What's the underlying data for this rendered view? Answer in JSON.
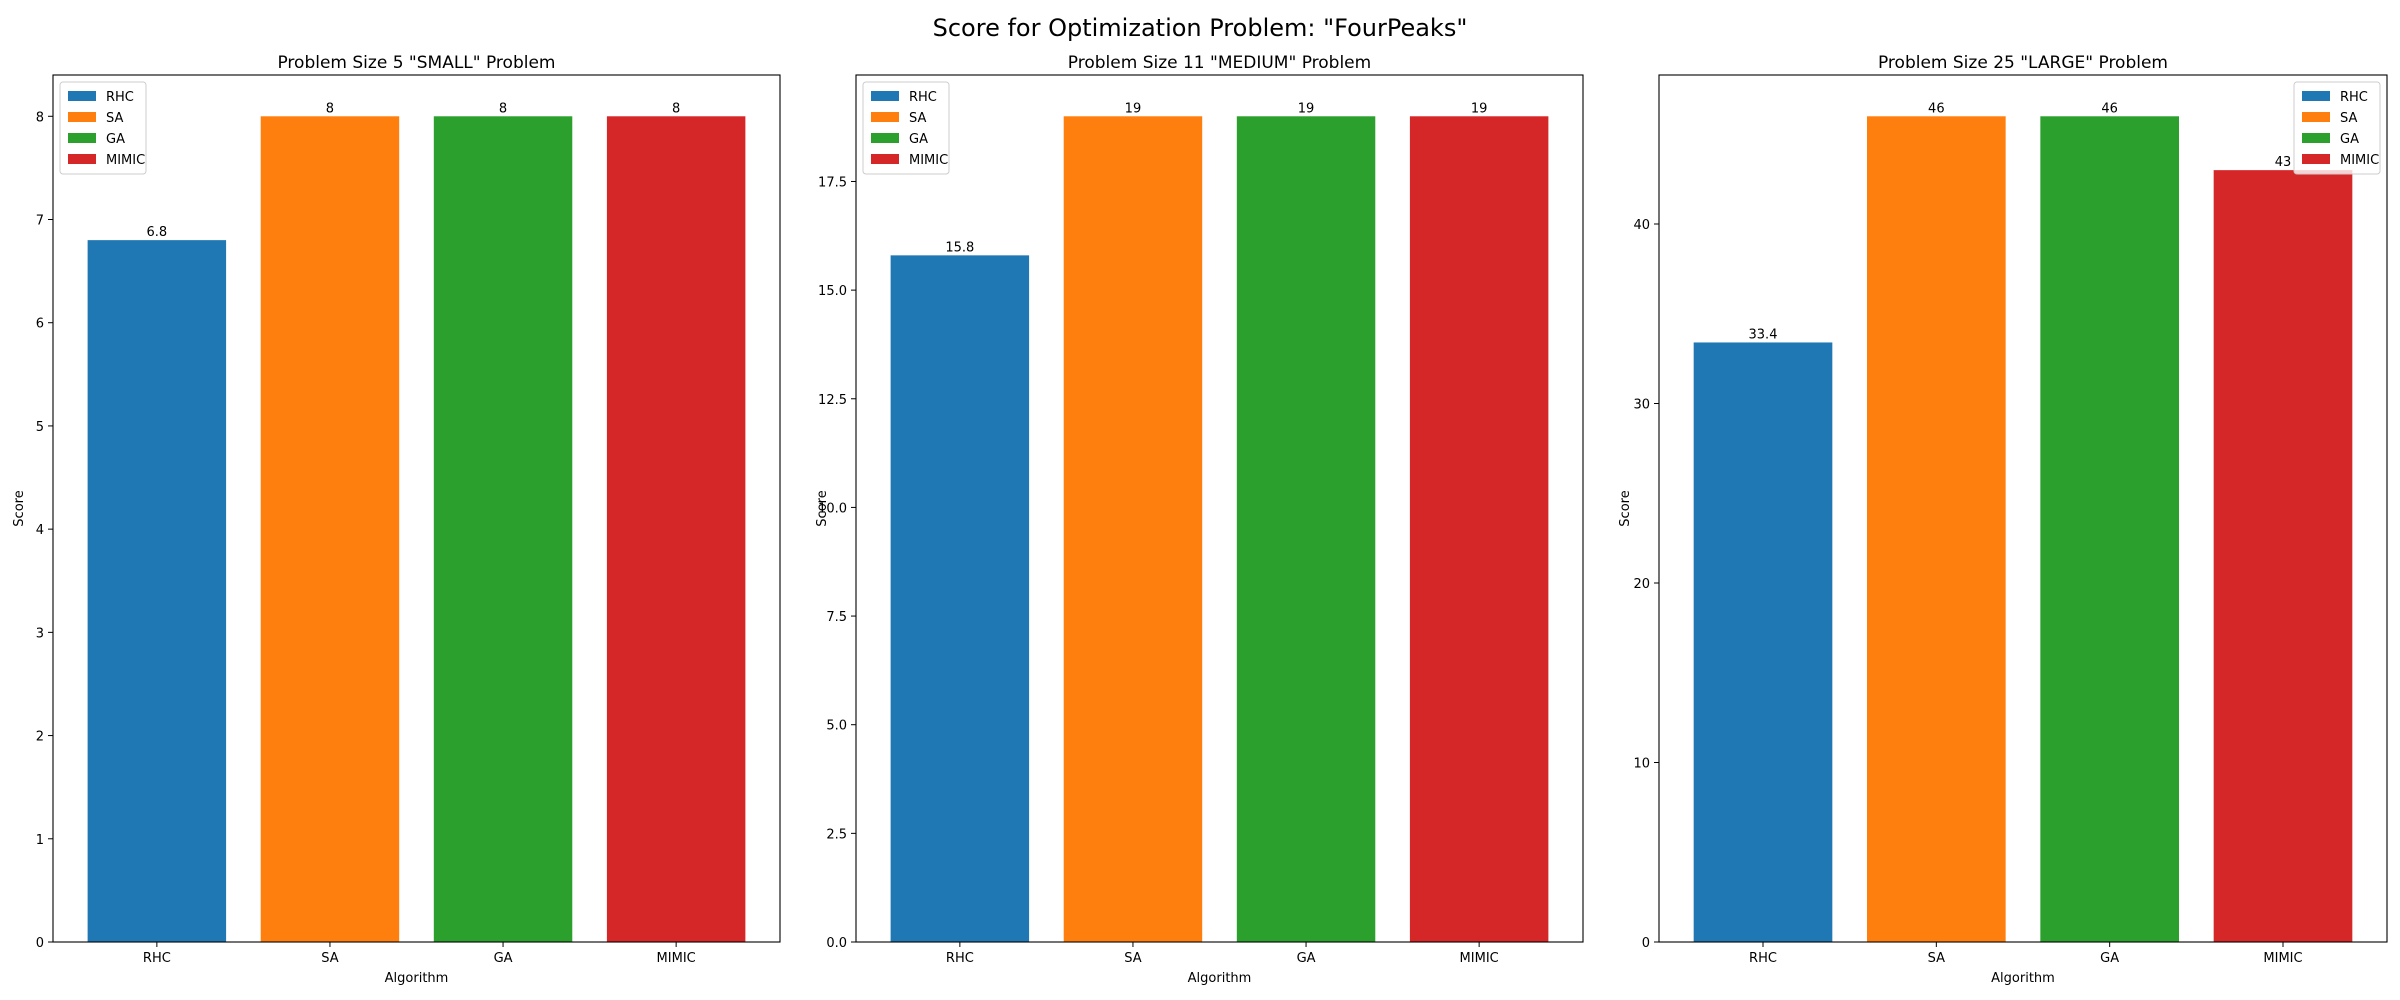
{
  "figure": {
    "suptitle": "Score for Optimization Problem: \"FourPeaks\""
  },
  "colors": {
    "RHC": "#1f77b4",
    "SA": "#ff7f0e",
    "GA": "#2ca02c",
    "MIMIC": "#d62728"
  },
  "chart_data": [
    {
      "type": "bar",
      "title": "Problem Size 5 \"SMALL\" Problem",
      "xlabel": "Algorithm",
      "ylabel": "Score",
      "categories": [
        "RHC",
        "SA",
        "GA",
        "MIMIC"
      ],
      "values": [
        6.8,
        8,
        8,
        8
      ],
      "value_labels": [
        "6.8",
        "8",
        "8",
        "8"
      ],
      "ylim": [
        0,
        8.4
      ],
      "yticks": [
        0,
        1,
        2,
        3,
        4,
        5,
        6,
        7,
        8
      ],
      "ytick_labels": [
        "0",
        "1",
        "2",
        "3",
        "4",
        "5",
        "6",
        "7",
        "8"
      ],
      "legend": [
        "RHC",
        "SA",
        "GA",
        "MIMIC"
      ],
      "legend_position": "top-left",
      "grid": false
    },
    {
      "type": "bar",
      "title": "Problem Size 11 \"MEDIUM\" Problem",
      "xlabel": "Algorithm",
      "ylabel": "Score",
      "categories": [
        "RHC",
        "SA",
        "GA",
        "MIMIC"
      ],
      "values": [
        15.8,
        19,
        19,
        19
      ],
      "value_labels": [
        "15.8",
        "19",
        "19",
        "19"
      ],
      "ylim": [
        0,
        19.95
      ],
      "yticks": [
        0,
        2.5,
        5,
        7.5,
        10,
        12.5,
        15,
        17.5
      ],
      "ytick_labels": [
        "0.0",
        "2.5",
        "5.0",
        "7.5",
        "10.0",
        "12.5",
        "15.0",
        "17.5"
      ],
      "legend": [
        "RHC",
        "SA",
        "GA",
        "MIMIC"
      ],
      "legend_position": "top-left",
      "grid": false
    },
    {
      "type": "bar",
      "title": "Problem Size 25 \"LARGE\" Problem",
      "xlabel": "Algorithm",
      "ylabel": "Score",
      "categories": [
        "RHC",
        "SA",
        "GA",
        "MIMIC"
      ],
      "values": [
        33.4,
        46,
        46,
        43
      ],
      "value_labels": [
        "33.4",
        "46",
        "46",
        "43"
      ],
      "ylim": [
        0,
        48.3
      ],
      "yticks": [
        0,
        10,
        20,
        30,
        40
      ],
      "ytick_labels": [
        "0",
        "10",
        "20",
        "30",
        "40"
      ],
      "legend": [
        "RHC",
        "SA",
        "GA",
        "MIMIC"
      ],
      "legend_position": "top-right",
      "grid": false
    }
  ]
}
